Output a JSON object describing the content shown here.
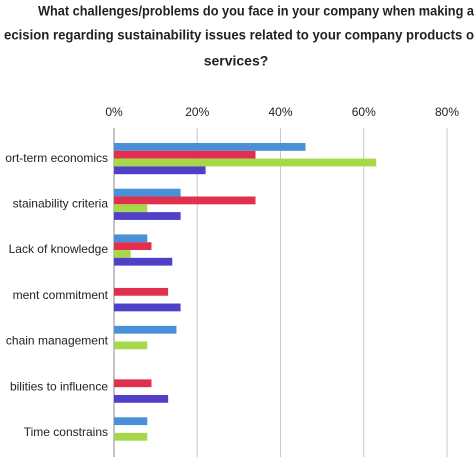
{
  "chart_data": {
    "type": "hbar",
    "title_lines": [
      "What challenges/problems do you face in your company when making a",
      "ecision regarding sustainability issues related to your company products o",
      "services?"
    ],
    "categories": [
      "ort-term economics",
      "stainability criteria",
      "Lack of knowledge",
      "ment commitment",
      "chain management",
      "bilities to influence",
      "Time constrains"
    ],
    "series": [
      {
        "color": "#4a90d9",
        "values": [
          46,
          16,
          8,
          0,
          15,
          0,
          8
        ]
      },
      {
        "color": "#e0304e",
        "values": [
          34,
          34,
          9,
          13,
          0,
          9,
          0
        ]
      },
      {
        "color": "#a6d94a",
        "values": [
          63,
          8,
          4,
          0,
          8,
          0,
          8
        ]
      },
      {
        "color": "#5040c8",
        "values": [
          22,
          16,
          14,
          16,
          0,
          13,
          0
        ]
      }
    ],
    "xlim": [
      0,
      80
    ],
    "xticks": [
      {
        "value": 0,
        "label": "0%"
      },
      {
        "value": 20,
        "label": "20%"
      },
      {
        "value": 40,
        "label": "40%"
      },
      {
        "value": 60,
        "label": "60%"
      },
      {
        "value": 80,
        "label": "80%"
      }
    ],
    "grid": true
  }
}
